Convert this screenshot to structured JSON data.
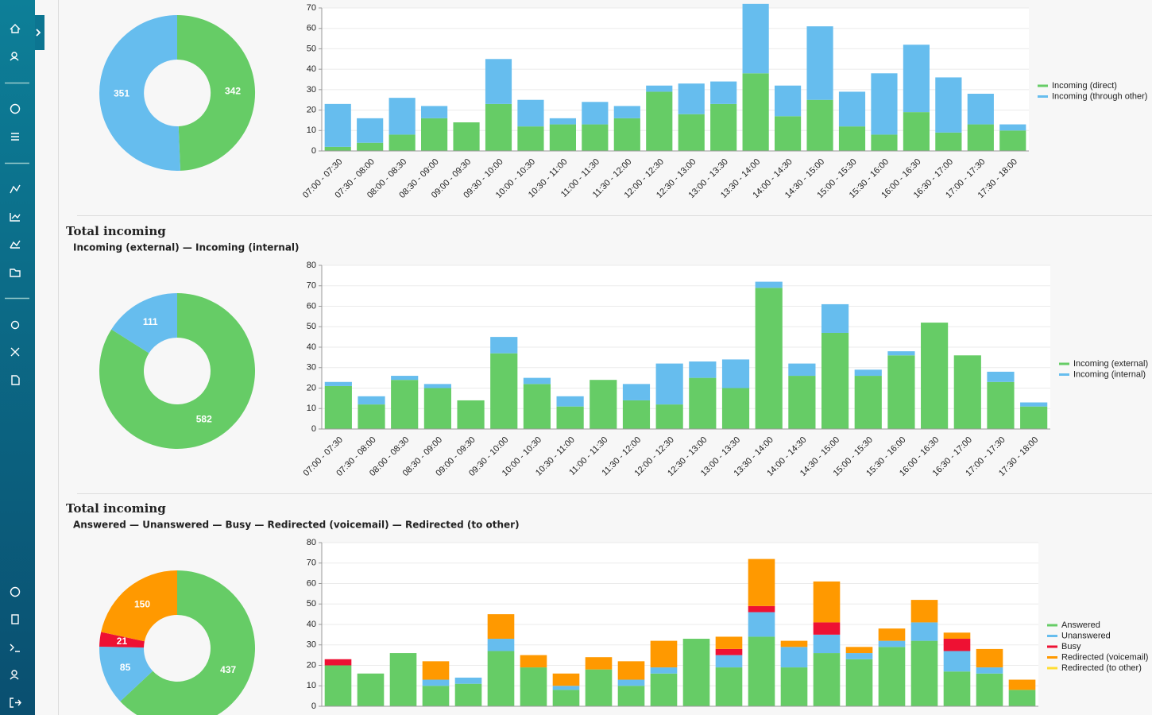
{
  "chart_data": [
    {
      "type": "pie",
      "values": [
        342,
        351
      ],
      "colors": [
        "#66cc66",
        "#66bdee"
      ]
    },
    {
      "type": "bar",
      "stacked": true,
      "grid": true,
      "legend": "right",
      "categories": [
        "07:00 - 07:30",
        "07:30 - 08:00",
        "08:00 - 08:30",
        "08:30 - 09:00",
        "09:00 - 09:30",
        "09:30 - 10:00",
        "10:00 - 10:30",
        "10:30 - 11:00",
        "11:00 - 11:30",
        "11:30 - 12:00",
        "12:00 - 12:30",
        "12:30 - 13:00",
        "13:00 - 13:30",
        "13:30 - 14:00",
        "14:00 - 14:30",
        "14:30 - 15:00",
        "15:00 - 15:30",
        "15:30 - 16:00",
        "16:00 - 16:30",
        "16:30 - 17:00",
        "17:00 - 17:30",
        "17:30 - 18:00"
      ],
      "series": [
        {
          "name": "Incoming (direct)",
          "color": "#66cc66",
          "values": [
            2,
            4,
            8,
            16,
            14,
            23,
            12,
            13,
            13,
            16,
            29,
            18,
            23,
            38,
            17,
            25,
            12,
            8,
            19,
            9,
            13,
            10
          ]
        },
        {
          "name": "Incoming (through other)",
          "color": "#66bdee",
          "values": [
            21,
            12,
            18,
            6,
            0,
            22,
            13,
            3,
            11,
            6,
            3,
            15,
            11,
            34,
            15,
            36,
            17,
            30,
            33,
            27,
            15,
            3
          ]
        }
      ],
      "ylim": [
        0,
        70
      ],
      "yticks": [
        0,
        10,
        20,
        30,
        40,
        50,
        60,
        70
      ]
    },
    {
      "type": "pie",
      "title": "Total incoming",
      "subtitle": "Incoming (external) — Incoming (internal)",
      "values": [
        582,
        111
      ],
      "colors": [
        "#66cc66",
        "#66bdee"
      ]
    },
    {
      "type": "bar",
      "stacked": true,
      "grid": true,
      "legend": "right",
      "categories": [
        "07:00 - 07:30",
        "07:30 - 08:00",
        "08:00 - 08:30",
        "08:30 - 09:00",
        "09:00 - 09:30",
        "09:30 - 10:00",
        "10:00 - 10:30",
        "10:30 - 11:00",
        "11:00 - 11:30",
        "11:30 - 12:00",
        "12:00 - 12:30",
        "12:30 - 13:00",
        "13:00 - 13:30",
        "13:30 - 14:00",
        "14:00 - 14:30",
        "14:30 - 15:00",
        "15:00 - 15:30",
        "15:30 - 16:00",
        "16:00 - 16:30",
        "16:30 - 17:00",
        "17:00 - 17:30",
        "17:30 - 18:00"
      ],
      "series": [
        {
          "name": "Incoming (external)",
          "color": "#66cc66",
          "values": [
            21,
            12,
            24,
            20,
            14,
            37,
            22,
            11,
            24,
            14,
            12,
            25,
            20,
            69,
            26,
            47,
            26,
            36,
            52,
            36,
            23,
            11
          ]
        },
        {
          "name": "Incoming (internal)",
          "color": "#66bdee",
          "values": [
            2,
            4,
            2,
            2,
            0,
            8,
            3,
            5,
            0,
            8,
            20,
            8,
            14,
            3,
            6,
            14,
            3,
            2,
            0,
            0,
            5,
            2
          ]
        }
      ],
      "ylim": [
        0,
        80
      ],
      "yticks": [
        0,
        10,
        20,
        30,
        40,
        50,
        60,
        70,
        80
      ]
    },
    {
      "type": "pie",
      "title": "Total incoming",
      "subtitle": "Answered — Unanswered — Busy — Redirected (voicemail) — Redirected (to other)",
      "values": [
        437,
        85,
        21,
        150
      ],
      "colors": [
        "#66cc66",
        "#66bdee",
        "#ee1133",
        "#ff9900"
      ]
    },
    {
      "type": "bar",
      "stacked": true,
      "grid": true,
      "legend": "right",
      "series": [
        {
          "name": "Answered",
          "color": "#66cc66",
          "values": [
            20,
            16,
            26,
            10,
            11,
            27,
            19,
            8,
            18,
            10,
            16,
            33,
            19,
            34,
            19,
            26,
            23,
            29,
            32,
            17,
            16,
            8
          ]
        },
        {
          "name": "Unanswered",
          "color": "#66bdee",
          "values": [
            0,
            0,
            0,
            3,
            3,
            6,
            0,
            2,
            0,
            3,
            3,
            0,
            6,
            12,
            10,
            9,
            3,
            3,
            9,
            10,
            3,
            0
          ]
        },
        {
          "name": "Busy",
          "color": "#ee1133",
          "values": [
            3,
            0,
            0,
            0,
            0,
            0,
            0,
            0,
            0,
            0,
            0,
            0,
            3,
            3,
            0,
            6,
            0,
            0,
            0,
            6,
            0,
            0
          ]
        },
        {
          "name": "Redirected (voicemail)",
          "color": "#ff9900",
          "values": [
            0,
            0,
            0,
            9,
            0,
            12,
            6,
            6,
            6,
            9,
            13,
            0,
            6,
            23,
            3,
            20,
            3,
            6,
            11,
            3,
            9,
            5
          ]
        },
        {
          "name": "Redirected (to other)",
          "color": "#ffdd33",
          "values": [
            0,
            0,
            0,
            0,
            0,
            0,
            0,
            0,
            0,
            0,
            0,
            0,
            0,
            0,
            0,
            0,
            0,
            0,
            0,
            0,
            0,
            0
          ]
        }
      ],
      "ylim": [
        0,
        80
      ],
      "yticks": [
        0,
        10,
        20,
        30,
        40,
        50,
        60,
        70,
        80
      ]
    }
  ]
}
